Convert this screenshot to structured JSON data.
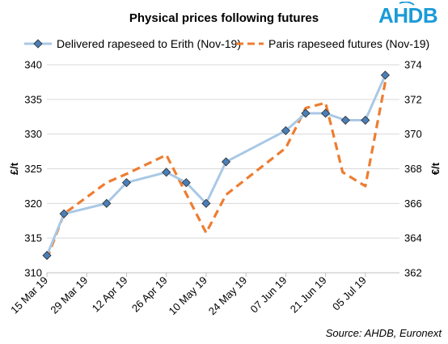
{
  "brand": "AHDB",
  "source_note": "Source: AHDB, Euronext",
  "colors": {
    "left_series": "#a9c8e6",
    "marker": "#4a7fb8",
    "right_series": "#ed7d31",
    "grid": "#d9d9d9",
    "brand": "#1b9bd7"
  },
  "chart_data": {
    "type": "line",
    "title": "Physical prices following futures",
    "ylabel_left": "£/t",
    "ylabel_right": "€/t",
    "ylim_left": [
      310,
      340
    ],
    "yticks_left": [
      310,
      315,
      320,
      325,
      330,
      335,
      340
    ],
    "ylim_right": [
      362,
      374
    ],
    "yticks_right": [
      362,
      364,
      366,
      368,
      370,
      372,
      374
    ],
    "xlim": [
      "2019-03-15",
      "2019-07-17"
    ],
    "x_tick_labels": [
      "15 Mar 19",
      "29 Mar 19",
      "12 Apr 19",
      "26 Apr 19",
      "10 May 19",
      "24 May 19",
      "07 Jun 19",
      "21 Jun 19",
      "05 Jul 19"
    ],
    "x_tick_dates": [
      "2019-03-15",
      "2019-03-29",
      "2019-04-12",
      "2019-04-26",
      "2019-05-10",
      "2019-05-24",
      "2019-06-07",
      "2019-06-21",
      "2019-07-05"
    ],
    "legend_position": "top",
    "grid": true,
    "series": [
      {
        "name": "Delivered rapeseed to Erith (Nov-19)",
        "axis": "left",
        "style": "solid line with diamond markers",
        "x": [
          "2019-03-15",
          "2019-03-21",
          "2019-04-05",
          "2019-04-12",
          "2019-04-26",
          "2019-05-03",
          "2019-05-10",
          "2019-05-17",
          "2019-06-07",
          "2019-06-14",
          "2019-06-21",
          "2019-06-28",
          "2019-07-05",
          "2019-07-12"
        ],
        "values": [
          312.5,
          318.5,
          320,
          323,
          324.5,
          323,
          320,
          326,
          330.5,
          333,
          333,
          332,
          332,
          338.5
        ]
      },
      {
        "name": "Paris rapeseed futures (Nov-19)",
        "axis": "right",
        "style": "dashed line",
        "x": [
          "2019-03-15",
          "2019-03-21",
          "2019-04-05",
          "2019-04-12",
          "2019-04-26",
          "2019-05-10",
          "2019-05-17",
          "2019-06-07",
          "2019-06-14",
          "2019-06-21",
          "2019-06-27",
          "2019-07-05",
          "2019-07-12"
        ],
        "values": [
          362.8,
          365.4,
          367.2,
          367.7,
          368.8,
          364.3,
          366.5,
          369.2,
          371.5,
          371.8,
          367.8,
          367,
          373
        ]
      }
    ]
  }
}
